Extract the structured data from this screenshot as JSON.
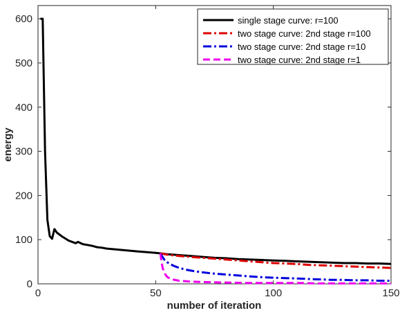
{
  "chart_data": {
    "type": "line",
    "title": "",
    "xlabel": "number of iteration",
    "ylabel": "energy",
    "xlim": [
      0,
      150
    ],
    "ylim": [
      0,
      630
    ],
    "xticks": [
      0,
      50,
      100,
      150
    ],
    "yticks": [
      0,
      100,
      200,
      300,
      400,
      500,
      600
    ],
    "xtick_labels": [
      "0",
      "50",
      "100",
      "150"
    ],
    "ytick_labels": [
      "0",
      "100",
      "200",
      "300",
      "400",
      "500",
      "600"
    ],
    "grid": false,
    "legend_position": "top-right",
    "series": [
      {
        "name": "single stage curve: r=100",
        "color": "#000000",
        "dash": "solid",
        "x": [
          1,
          2,
          3,
          4,
          5,
          6,
          7,
          8,
          10,
          13,
          16,
          17,
          19,
          21,
          23,
          25,
          27,
          29,
          31,
          33,
          35,
          37,
          39,
          41,
          43,
          46,
          50,
          52,
          55,
          60,
          65,
          70,
          75,
          80,
          85,
          90,
          95,
          100,
          105,
          110,
          115,
          120,
          125,
          130,
          135,
          140,
          145,
          150
        ],
        "y": [
          600,
          600,
          300,
          145,
          108,
          102,
          124,
          116,
          108,
          98,
          92,
          95,
          90,
          88,
          86,
          83,
          82,
          80,
          79,
          78,
          77,
          76,
          75,
          74,
          73,
          72,
          70,
          69,
          67,
          65,
          63,
          61,
          59,
          58,
          56,
          55,
          54,
          53,
          52,
          51,
          50,
          49,
          48,
          47,
          47,
          46,
          46,
          45
        ]
      },
      {
        "name": "two stage curve: 2nd stage r=100",
        "color": "#dd0000",
        "dash": "dash-dot",
        "x": [
          52,
          55,
          60,
          65,
          70,
          75,
          80,
          85,
          90,
          95,
          100,
          105,
          110,
          115,
          120,
          125,
          130,
          135,
          140,
          145,
          150
        ],
        "y": [
          69,
          66,
          63,
          61,
          59,
          57,
          55,
          53,
          51,
          49,
          47,
          46,
          45,
          43,
          42,
          41,
          40,
          39,
          38,
          37,
          36
        ]
      },
      {
        "name": "two stage curve: 2nd stage r=10",
        "color": "#0000dd",
        "dash": "dash-dot",
        "x": [
          52,
          53,
          54,
          56,
          58,
          60,
          63,
          66,
          70,
          75,
          80,
          85,
          90,
          95,
          100,
          105,
          110,
          115,
          120,
          125,
          130,
          135,
          140,
          145,
          150
        ],
        "y": [
          69,
          60,
          52,
          45,
          40,
          36,
          32,
          29,
          26,
          23,
          21,
          19,
          17,
          15,
          14,
          13,
          12,
          11,
          10,
          9,
          9,
          8,
          8,
          7,
          7
        ]
      },
      {
        "name": "two stage curve: 2nd stage r=1",
        "color": "#ee00ee",
        "dash": "dash",
        "x": [
          52,
          52.5,
          53,
          54,
          55,
          57,
          60,
          65,
          70,
          80,
          90,
          100,
          110,
          120,
          130,
          140,
          150
        ],
        "y": [
          69,
          50,
          35,
          22,
          15,
          10,
          7,
          5,
          4,
          3,
          2,
          2,
          2,
          1,
          1,
          1,
          1
        ]
      }
    ]
  }
}
